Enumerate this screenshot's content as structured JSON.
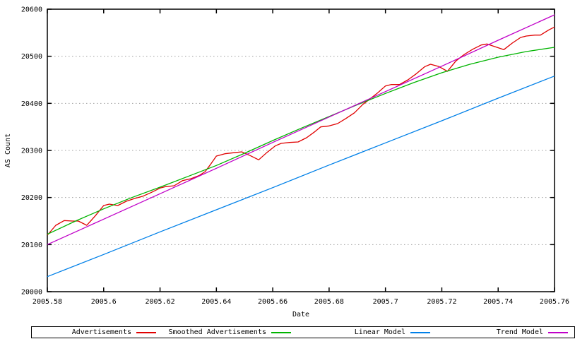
{
  "chart_data": {
    "type": "line",
    "title": "",
    "xlabel": "Date",
    "ylabel": "AS Count",
    "xlim": [
      2005.58,
      2005.76
    ],
    "ylim": [
      20000,
      20600
    ],
    "grid": "horizontal-dotted",
    "grid_color": "#a0a0a0",
    "border_color": "#000000",
    "legend_position": "bottom-strip",
    "x_ticks": [
      2005.58,
      2005.6,
      2005.62,
      2005.64,
      2005.66,
      2005.68,
      2005.7,
      2005.72,
      2005.74,
      2005.76
    ],
    "x_tick_labels": [
      "2005.58",
      "2005.6",
      "2005.62",
      "2005.64",
      "2005.66",
      "2005.68",
      "2005.7",
      "2005.72",
      "2005.74",
      "2005.76"
    ],
    "y_ticks": [
      20000,
      20100,
      20200,
      20300,
      20400,
      20500,
      20600
    ],
    "y_tick_labels": [
      "20000",
      "20100",
      "20200",
      "20300",
      "20400",
      "20500",
      "20600"
    ],
    "series": [
      {
        "name": "Advertisements",
        "color": "#e00000",
        "points": [
          [
            2005.58,
            20120
          ],
          [
            2005.583,
            20141
          ],
          [
            2005.586,
            20151
          ],
          [
            2005.589,
            20150
          ],
          [
            2005.591,
            20150
          ],
          [
            2005.594,
            20141
          ],
          [
            2005.597,
            20161
          ],
          [
            2005.6,
            20183
          ],
          [
            2005.602,
            20186
          ],
          [
            2005.605,
            20183
          ],
          [
            2005.608,
            20192
          ],
          [
            2005.611,
            20198
          ],
          [
            2005.614,
            20203
          ],
          [
            2005.617,
            20211
          ],
          [
            2005.62,
            20220
          ],
          [
            2005.622,
            20223
          ],
          [
            2005.625,
            20225
          ],
          [
            2005.628,
            20236
          ],
          [
            2005.631,
            20240
          ],
          [
            2005.634,
            20247
          ],
          [
            2005.636,
            20255
          ],
          [
            2005.638,
            20271
          ],
          [
            2005.64,
            20288
          ],
          [
            2005.643,
            20293
          ],
          [
            2005.646,
            20295
          ],
          [
            2005.649,
            20297
          ],
          [
            2005.652,
            20289
          ],
          [
            2005.655,
            20280
          ],
          [
            2005.658,
            20296
          ],
          [
            2005.661,
            20310
          ],
          [
            2005.663,
            20315
          ],
          [
            2005.666,
            20317
          ],
          [
            2005.669,
            20318
          ],
          [
            2005.672,
            20327
          ],
          [
            2005.675,
            20340
          ],
          [
            2005.677,
            20350
          ],
          [
            2005.68,
            20352
          ],
          [
            2005.683,
            20357
          ],
          [
            2005.686,
            20368
          ],
          [
            2005.689,
            20380
          ],
          [
            2005.692,
            20398
          ],
          [
            2005.694,
            20407
          ],
          [
            2005.697,
            20421
          ],
          [
            2005.7,
            20437
          ],
          [
            2005.702,
            20440
          ],
          [
            2005.705,
            20440
          ],
          [
            2005.708,
            20450
          ],
          [
            2005.711,
            20463
          ],
          [
            2005.714,
            20478
          ],
          [
            2005.716,
            20483
          ],
          [
            2005.719,
            20478
          ],
          [
            2005.722,
            20468
          ],
          [
            2005.725,
            20490
          ],
          [
            2005.728,
            20504
          ],
          [
            2005.731,
            20515
          ],
          [
            2005.734,
            20524
          ],
          [
            2005.736,
            20526
          ],
          [
            2005.739,
            20520
          ],
          [
            2005.742,
            20514
          ],
          [
            2005.745,
            20528
          ],
          [
            2005.748,
            20540
          ],
          [
            2005.75,
            20543
          ],
          [
            2005.753,
            20545
          ],
          [
            2005.755,
            20545
          ],
          [
            2005.758,
            20556
          ],
          [
            2005.76,
            20562
          ]
        ]
      },
      {
        "name": "Smoothed Advertisements",
        "color": "#00b400",
        "points": [
          [
            2005.58,
            20122
          ],
          [
            2005.59,
            20150
          ],
          [
            2005.6,
            20176
          ],
          [
            2005.61,
            20200
          ],
          [
            2005.62,
            20222
          ],
          [
            2005.63,
            20245
          ],
          [
            2005.64,
            20268
          ],
          [
            2005.65,
            20294
          ],
          [
            2005.66,
            20321
          ],
          [
            2005.67,
            20347
          ],
          [
            2005.68,
            20372
          ],
          [
            2005.69,
            20397
          ],
          [
            2005.7,
            20421
          ],
          [
            2005.71,
            20444
          ],
          [
            2005.72,
            20465
          ],
          [
            2005.73,
            20483
          ],
          [
            2005.74,
            20498
          ],
          [
            2005.75,
            20510
          ],
          [
            2005.76,
            20519
          ]
        ]
      },
      {
        "name": "Linear Model",
        "color": "#0080e8",
        "points": [
          [
            2005.58,
            20032
          ],
          [
            2005.6,
            20079
          ],
          [
            2005.62,
            20127
          ],
          [
            2005.64,
            20174
          ],
          [
            2005.66,
            20221
          ],
          [
            2005.68,
            20269
          ],
          [
            2005.7,
            20316
          ],
          [
            2005.72,
            20363
          ],
          [
            2005.74,
            20411
          ],
          [
            2005.76,
            20458
          ]
        ]
      },
      {
        "name": "Trend Model",
        "color": "#c000c8",
        "points": [
          [
            2005.58,
            20100
          ],
          [
            2005.6,
            20154
          ],
          [
            2005.62,
            20208
          ],
          [
            2005.64,
            20262
          ],
          [
            2005.66,
            20317
          ],
          [
            2005.68,
            20371
          ],
          [
            2005.7,
            20425
          ],
          [
            2005.72,
            20479
          ],
          [
            2005.74,
            20534
          ],
          [
            2005.76,
            20588
          ]
        ]
      }
    ]
  },
  "legend": {
    "items": [
      {
        "label": "Advertisements"
      },
      {
        "label": "Smoothed Advertisements"
      },
      {
        "label": "Linear Model"
      },
      {
        "label": "Trend Model"
      }
    ]
  }
}
